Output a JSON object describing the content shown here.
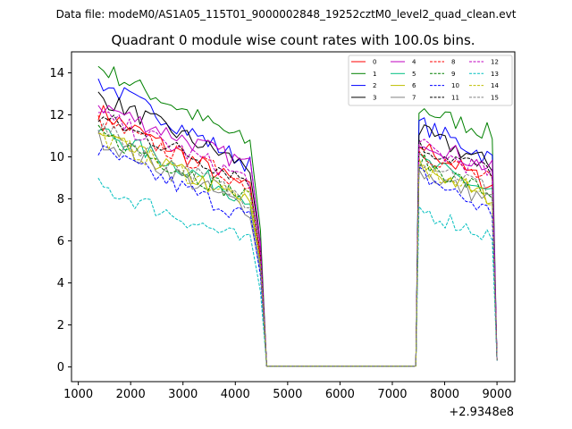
{
  "chart_data": {
    "type": "line",
    "suptitle": "Data file: modeM0/AS1A05_115T01_9000002848_19252cztM0_level2_quad_clean.evt",
    "title": "Quadrant 0 module wise count rates with 100.0s bins.",
    "xlabel": "",
    "ylabel": "",
    "x_offset_label": "+2.9348e8",
    "xlim": [
      870,
      9340
    ],
    "ylim": [
      -0.7,
      15.0
    ],
    "xticks": [
      1000,
      2000,
      3000,
      4000,
      5000,
      6000,
      7000,
      8000,
      9000
    ],
    "yticks": [
      0,
      2,
      4,
      6,
      8,
      10,
      12,
      14
    ],
    "legend_position": "top-right",
    "gap_ranges": [
      [
        4600,
        7450
      ]
    ],
    "series": [
      {
        "name": "0",
        "color": "#ff0000",
        "dash": "solid",
        "seg1_start": 12.2,
        "seg1_end": 8.3,
        "seg2_start": 10.6,
        "seg2_end": 8.6
      },
      {
        "name": "1",
        "color": "#008000",
        "dash": "solid",
        "seg1_start": 14.3,
        "seg1_end": 10.5,
        "seg2_start": 12.3,
        "seg2_end": 11.1
      },
      {
        "name": "2",
        "color": "#0000ff",
        "dash": "solid",
        "seg1_start": 13.6,
        "seg1_end": 9.5,
        "seg2_start": 11.6,
        "seg2_end": 9.9
      },
      {
        "name": "3",
        "color": "#000000",
        "dash": "solid",
        "seg1_start": 12.9,
        "seg1_end": 9.4,
        "seg2_start": 11.2,
        "seg2_end": 9.6
      },
      {
        "name": "4",
        "color": "#bf00bf",
        "dash": "solid",
        "seg1_start": 12.5,
        "seg1_end": 9.5,
        "seg2_start": 10.9,
        "seg2_end": 9.4
      },
      {
        "name": "5",
        "color": "#00bf80",
        "dash": "solid",
        "seg1_start": 11.3,
        "seg1_end": 7.9,
        "seg2_start": 9.8,
        "seg2_end": 8.3
      },
      {
        "name": "6",
        "color": "#bfbf00",
        "dash": "solid",
        "seg1_start": 11.0,
        "seg1_end": 7.7,
        "seg2_start": 9.6,
        "seg2_end": 8.0
      },
      {
        "name": "7",
        "color": "#808080",
        "dash": "solid",
        "seg1_start": 10.9,
        "seg1_end": 7.4,
        "seg2_start": 9.3,
        "seg2_end": 7.9
      },
      {
        "name": "8",
        "color": "#ff0000",
        "dash": "dashed",
        "seg1_start": 11.7,
        "seg1_end": 8.6,
        "seg2_start": 10.3,
        "seg2_end": 8.8
      },
      {
        "name": "9",
        "color": "#008000",
        "dash": "dashed",
        "seg1_start": 11.1,
        "seg1_end": 7.9,
        "seg2_start": 9.8,
        "seg2_end": 8.2
      },
      {
        "name": "10",
        "color": "#0000ff",
        "dash": "dashed",
        "seg1_start": 10.3,
        "seg1_end": 7.0,
        "seg2_start": 9.2,
        "seg2_end": 7.3
      },
      {
        "name": "11",
        "color": "#000000",
        "dash": "dashed",
        "seg1_start": 11.9,
        "seg1_end": 8.8,
        "seg2_start": 10.5,
        "seg2_end": 9.3
      },
      {
        "name": "12",
        "color": "#bf00bf",
        "dash": "dashed",
        "seg1_start": 12.0,
        "seg1_end": 8.8,
        "seg2_start": 10.5,
        "seg2_end": 9.2
      },
      {
        "name": "13",
        "color": "#00bfbf",
        "dash": "dashed",
        "seg1_start": 8.6,
        "seg1_end": 5.8,
        "seg2_start": 7.5,
        "seg2_end": 6.2
      },
      {
        "name": "14",
        "color": "#bfbf00",
        "dash": "dashed",
        "seg1_start": 11.0,
        "seg1_end": 7.8,
        "seg2_start": 9.5,
        "seg2_end": 8.0
      },
      {
        "name": "15",
        "color": "#808080",
        "dash": "dashed",
        "seg1_start": 11.4,
        "seg1_end": 7.8,
        "seg2_start": 10.0,
        "seg2_end": 8.4
      }
    ]
  }
}
